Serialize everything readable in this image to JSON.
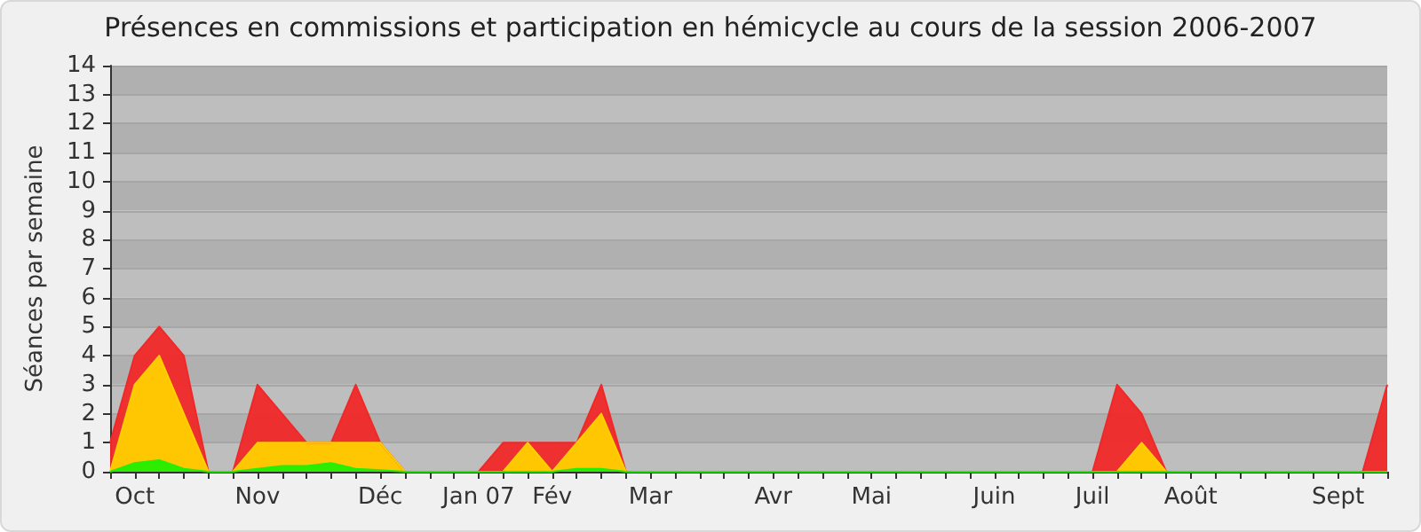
{
  "chart_data": {
    "type": "area",
    "title": "Présences en commissions et participation en hémicycle au cours de la session 2006-2007",
    "ylabel": "Séances par semaine",
    "categories": [
      null,
      "Oct",
      null,
      null,
      null,
      null,
      "Nov",
      null,
      null,
      null,
      null,
      "Déc",
      null,
      null,
      null,
      "Jan 07",
      null,
      null,
      "Fév",
      null,
      null,
      null,
      "Mar",
      null,
      null,
      null,
      null,
      "Avr",
      null,
      null,
      null,
      "Mai",
      null,
      null,
      null,
      null,
      "Juin",
      null,
      null,
      null,
      "Juil",
      null,
      null,
      null,
      "Août",
      null,
      null,
      null,
      null,
      null,
      "Sept",
      null,
      null
    ],
    "series": [
      {
        "color": "#f02828",
        "values": [
          1,
          4,
          5,
          4,
          0,
          0,
          3,
          2,
          1,
          1,
          3,
          1,
          0,
          0,
          0,
          0,
          1,
          1,
          1,
          1,
          3,
          0,
          0,
          0,
          0,
          0,
          0,
          0,
          0,
          0,
          0,
          0,
          0,
          0,
          0,
          0,
          0,
          0,
          0,
          0,
          0,
          3,
          2,
          0,
          0,
          0,
          0,
          0,
          0,
          0,
          0,
          0,
          3
        ]
      },
      {
        "color": "#ffd000",
        "values": [
          0,
          3,
          4,
          2,
          0,
          0,
          1,
          1,
          1,
          1,
          1,
          1,
          0,
          0,
          0,
          0,
          0,
          1,
          0,
          1,
          2,
          0,
          0,
          0,
          0,
          0,
          0,
          0,
          0,
          0,
          0,
          0,
          0,
          0,
          0,
          0,
          0,
          0,
          0,
          0,
          0,
          0,
          1,
          0,
          0,
          0,
          0,
          0,
          0,
          0,
          0,
          0,
          0
        ]
      },
      {
        "color": "#22ee00",
        "values": [
          0,
          0.3,
          0.4,
          0.1,
          0,
          0,
          0.1,
          0.2,
          0.2,
          0.3,
          0.1,
          0.05,
          0,
          0,
          0,
          0,
          0,
          0,
          0,
          0.1,
          0.1,
          0,
          0,
          0,
          0,
          0,
          0,
          0,
          0,
          0,
          0,
          0,
          0,
          0,
          0,
          0,
          0,
          0,
          0,
          0,
          0,
          0,
          0,
          0,
          0,
          0,
          0,
          0,
          0,
          0,
          0,
          0,
          0
        ]
      }
    ],
    "ylim": [
      0,
      14
    ],
    "yticks": [
      0,
      1,
      2,
      3,
      4,
      5,
      6,
      7,
      8,
      9,
      10,
      11,
      12,
      13,
      14
    ],
    "grid": "y"
  }
}
